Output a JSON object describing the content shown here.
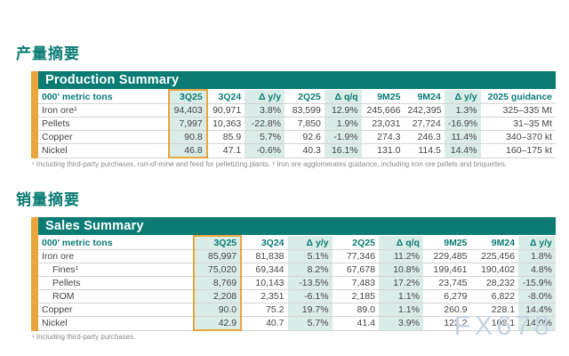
{
  "watermark": "FX678",
  "colors": {
    "teal_brand": "#0b7c74",
    "gold_highlight": "#e9a63c",
    "mint_column_bg": "#d9ece7",
    "watermark_blue_gray": "#c7d4e3"
  },
  "sections": [
    {
      "id": "production",
      "title_zh": "产量摘要",
      "table_title": "Production Summary",
      "unit_label": "000' metric tons",
      "columns": [
        "3Q25",
        "3Q24",
        "Δ y/y",
        "2Q25",
        "Δ q/q",
        "9M25",
        "9M24",
        "Δ y/y",
        "2025 guidance"
      ],
      "highlight_column": 0,
      "mint_columns": [
        0,
        2,
        4,
        7
      ],
      "rows": [
        {
          "label": "Iron ore¹",
          "indent": false,
          "values": [
            "94,403",
            "90,971",
            "3.8%",
            "83,599",
            "12.9%",
            "245,666",
            "242,395",
            "1.3%",
            "325–335 Mt"
          ]
        },
        {
          "label": "Pellets",
          "indent": false,
          "values": [
            "7,997",
            "10,363",
            "-22.8%",
            "7,850",
            "1.9%",
            "23,031",
            "27,724",
            "-16.9%",
            "31–35 Mt"
          ]
        },
        {
          "label": "Copper",
          "indent": false,
          "values": [
            "90.8",
            "85.9",
            "5.7%",
            "92.6",
            "-1.9%",
            "274.3",
            "246.3",
            "11.4%",
            "340–370 kt"
          ]
        },
        {
          "label": "Nickel",
          "indent": false,
          "values": [
            "46.8",
            "47.1",
            "-0.6%",
            "40.3",
            "16.1%",
            "131.0",
            "114.5",
            "14.4%",
            "160–175 kt"
          ]
        }
      ],
      "footnote": "¹ Including third-party purchases, run-of-mine and feed for pelletizing plants. ² Iron ore agglomerates guidance, including iron ore pellets and briquettes."
    },
    {
      "id": "sales",
      "title_zh": "销量摘要",
      "table_title": "Sales Summary",
      "unit_label": "000' metric tons",
      "columns": [
        "3Q25",
        "3Q24",
        "Δ y/y",
        "2Q25",
        "Δ q/q",
        "9M25",
        "9M24",
        "Δ y/y"
      ],
      "highlight_column": 0,
      "mint_columns": [
        0,
        2,
        4,
        7
      ],
      "rows": [
        {
          "label": "Iron ore",
          "indent": false,
          "values": [
            "85,997",
            "81,838",
            "5.1%",
            "77,346",
            "11.2%",
            "229,485",
            "225,456",
            "1.8%"
          ]
        },
        {
          "label": "Fines¹",
          "indent": true,
          "values": [
            "75,020",
            "69,344",
            "8.2%",
            "67,678",
            "10.8%",
            "199,461",
            "190,402",
            "4.8%"
          ]
        },
        {
          "label": "Pellets",
          "indent": true,
          "values": [
            "8,769",
            "10,143",
            "-13.5%",
            "7,483",
            "17.2%",
            "23,745",
            "28,232",
            "-15.9%"
          ]
        },
        {
          "label": "ROM",
          "indent": true,
          "values": [
            "2,208",
            "2,351",
            "-6.1%",
            "2,185",
            "1.1%",
            "6,279",
            "6,822",
            "-8.0%"
          ]
        },
        {
          "label": "Copper",
          "indent": false,
          "values": [
            "90.0",
            "75.2",
            "19.7%",
            "89.0",
            "1.1%",
            "260.9",
            "228.1",
            "14.4%"
          ]
        },
        {
          "label": "Nickel",
          "indent": false,
          "values": [
            "42.9",
            "40.7",
            "5.7%",
            "41.4",
            "3.9%",
            "123.2",
            "108.1",
            "14.0%"
          ]
        }
      ],
      "footnote": "¹ Including third-party purchases."
    }
  ]
}
